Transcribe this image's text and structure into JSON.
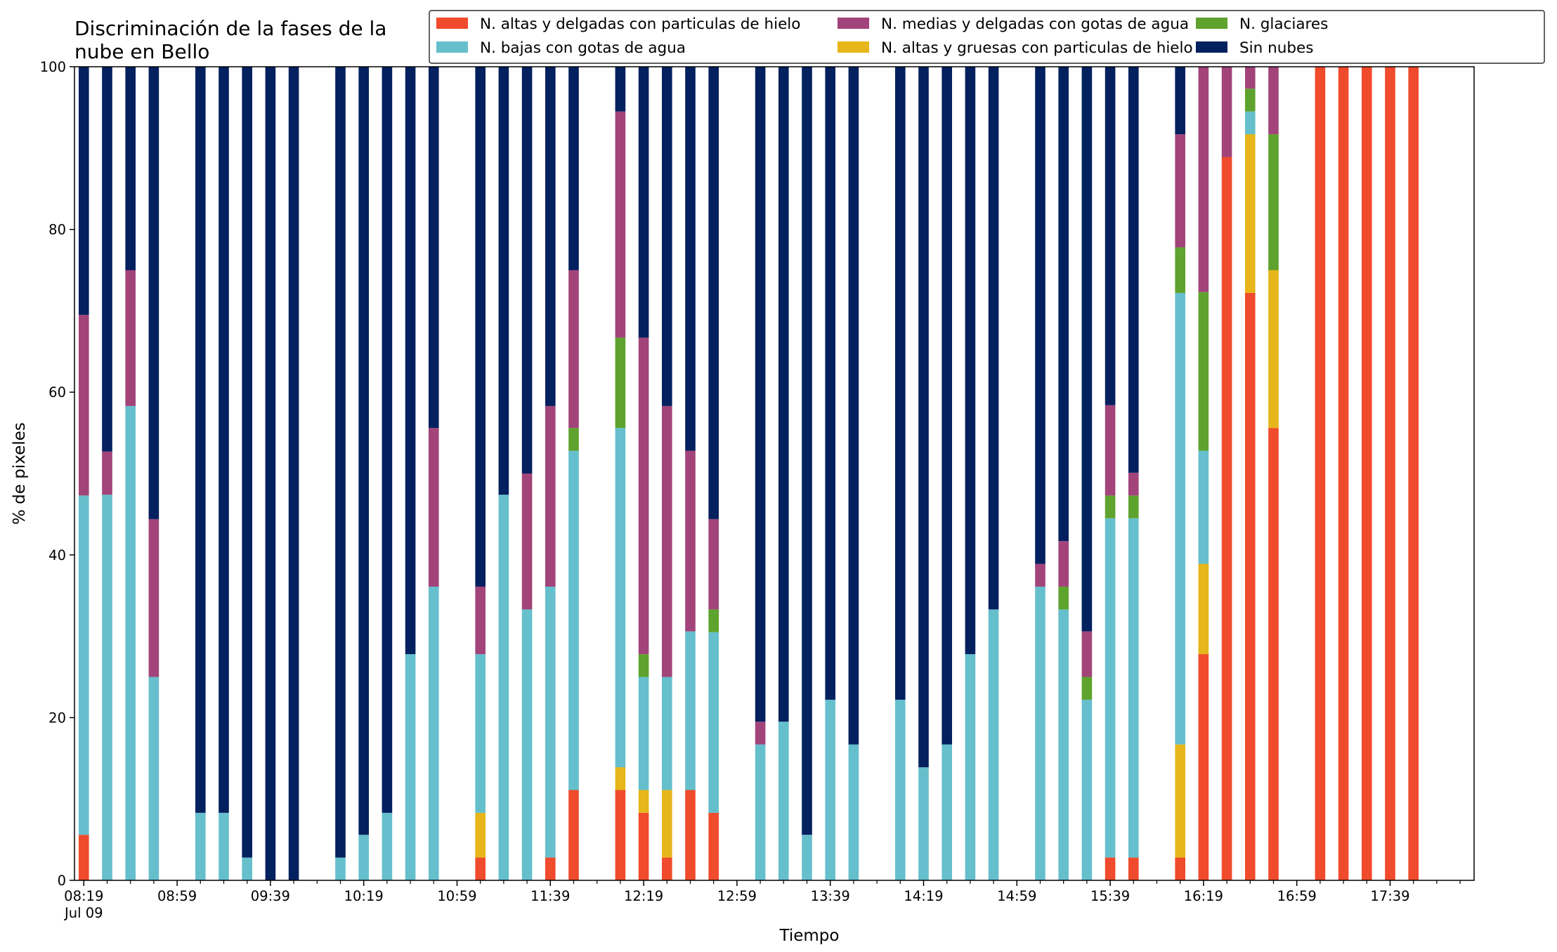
{
  "chart_data": {
    "type": "bar",
    "stacked": true,
    "title_lines": [
      "Discriminación de la fases de la",
      "nube en Bello"
    ],
    "xlabel": "Tiempo",
    "ylabel": "% de pixeles",
    "ylim": [
      0,
      100
    ],
    "yticks": [
      0,
      20,
      40,
      60,
      80,
      100
    ],
    "ytick_labels": [
      "0",
      "20",
      "40",
      "60",
      "80",
      "100"
    ],
    "grid": false,
    "legend_position": "top-right",
    "x_ticks": [
      {
        "time": "08:19",
        "label": "08:19",
        "sublabel": "Jul 09"
      },
      {
        "time": "08:59",
        "label": "08:59"
      },
      {
        "time": "09:39",
        "label": "09:39"
      },
      {
        "time": "10:19",
        "label": "10:19"
      },
      {
        "time": "10:59",
        "label": "10:59"
      },
      {
        "time": "11:39",
        "label": "11:39"
      },
      {
        "time": "12:19",
        "label": "12:19"
      },
      {
        "time": "12:59",
        "label": "12:59"
      },
      {
        "time": "13:39",
        "label": "13:39"
      },
      {
        "time": "14:19",
        "label": "14:19"
      },
      {
        "time": "14:59",
        "label": "14:59"
      },
      {
        "time": "15:39",
        "label": "15:39"
      },
      {
        "time": "16:19",
        "label": "16:19"
      },
      {
        "time": "16:59",
        "label": "16:59"
      },
      {
        "time": "17:39",
        "label": "17:39"
      }
    ],
    "x_range": [
      "08:15",
      "18:15"
    ],
    "bar_width_minutes": 4.4,
    "series": [
      {
        "name": "N. altas y delgadas con particulas de hielo",
        "color": "#ef4b2c"
      },
      {
        "name": "N. altas y gruesas con particulas de hielo",
        "color": "#e6b61a"
      },
      {
        "name": "N. bajas con gotas de agua",
        "color": "#66bfcc"
      },
      {
        "name": "N. glaciares",
        "color": "#5ea32d"
      },
      {
        "name": "N. medias y delgadas con gotas de agua",
        "color": "#a2447a"
      },
      {
        "name": "Sin nubes",
        "color": "#03205f"
      }
    ],
    "legend_order": [
      0,
      2,
      4,
      1,
      3,
      5
    ],
    "bars": [
      {
        "x": "08:19",
        "values": [
          5.6,
          0,
          41.7,
          0,
          22.2,
          30.5
        ]
      },
      {
        "x": "08:29",
        "values": [
          0,
          0,
          47.4,
          0,
          5.3,
          47.3
        ]
      },
      {
        "x": "08:39",
        "values": [
          0,
          0,
          58.3,
          0,
          16.7,
          25.0
        ]
      },
      {
        "x": "08:49",
        "values": [
          0,
          0,
          25.0,
          0,
          19.4,
          55.6
        ]
      },
      {
        "x": "09:09",
        "values": [
          0,
          0,
          8.3,
          0,
          0,
          91.7
        ]
      },
      {
        "x": "09:19",
        "values": [
          0,
          0,
          8.3,
          0,
          0,
          91.7
        ]
      },
      {
        "x": "09:29",
        "values": [
          0,
          0,
          2.8,
          0,
          0,
          97.2
        ]
      },
      {
        "x": "09:39",
        "values": [
          0,
          0,
          0,
          0,
          0,
          100
        ]
      },
      {
        "x": "09:49",
        "values": [
          0,
          0,
          0,
          0,
          0,
          100
        ]
      },
      {
        "x": "10:09",
        "values": [
          0,
          0,
          2.8,
          0,
          0,
          97.2
        ]
      },
      {
        "x": "10:19",
        "values": [
          0,
          0,
          5.6,
          0,
          0,
          94.4
        ]
      },
      {
        "x": "10:29",
        "values": [
          0,
          0,
          8.3,
          0,
          0,
          91.7
        ]
      },
      {
        "x": "10:39",
        "values": [
          0,
          0,
          27.8,
          0,
          0,
          72.2
        ]
      },
      {
        "x": "10:49",
        "values": [
          0,
          0,
          36.1,
          0,
          19.5,
          44.4
        ]
      },
      {
        "x": "11:09",
        "values": [
          2.8,
          5.5,
          19.5,
          0,
          8.3,
          63.9
        ]
      },
      {
        "x": "11:19",
        "values": [
          0,
          0,
          47.4,
          0,
          0,
          52.6
        ]
      },
      {
        "x": "11:29",
        "values": [
          0,
          0,
          33.3,
          0,
          16.7,
          50.0
        ]
      },
      {
        "x": "11:39",
        "values": [
          2.8,
          0,
          33.3,
          0,
          22.2,
          41.7
        ]
      },
      {
        "x": "11:49",
        "values": [
          11.1,
          0,
          41.7,
          2.8,
          19.4,
          25.0
        ]
      },
      {
        "x": "12:09",
        "values": [
          11.1,
          2.8,
          41.7,
          11.1,
          27.8,
          5.5
        ]
      },
      {
        "x": "12:19",
        "values": [
          8.3,
          2.8,
          13.9,
          2.8,
          38.9,
          33.3
        ]
      },
      {
        "x": "12:29",
        "values": [
          2.8,
          8.3,
          13.9,
          0,
          33.3,
          41.7
        ]
      },
      {
        "x": "12:39",
        "values": [
          11.1,
          0,
          19.5,
          0,
          22.2,
          47.2
        ]
      },
      {
        "x": "12:49",
        "values": [
          8.3,
          0,
          22.2,
          2.8,
          11.1,
          55.6
        ]
      },
      {
        "x": "13:09",
        "values": [
          0,
          0,
          16.7,
          0,
          2.8,
          80.5
        ]
      },
      {
        "x": "13:19",
        "values": [
          0,
          0,
          19.5,
          0,
          0,
          80.5
        ]
      },
      {
        "x": "13:29",
        "values": [
          0,
          0,
          5.6,
          0,
          0,
          94.4
        ]
      },
      {
        "x": "13:39",
        "values": [
          0,
          0,
          22.2,
          0,
          0,
          77.8
        ]
      },
      {
        "x": "13:49",
        "values": [
          0,
          0,
          16.7,
          0,
          0,
          83.3
        ]
      },
      {
        "x": "14:09",
        "values": [
          0,
          0,
          22.2,
          0,
          0,
          77.8
        ]
      },
      {
        "x": "14:19",
        "values": [
          0,
          0,
          13.9,
          0,
          0,
          86.1
        ]
      },
      {
        "x": "14:29",
        "values": [
          0,
          0,
          16.7,
          0,
          0,
          83.3
        ]
      },
      {
        "x": "14:39",
        "values": [
          0,
          0,
          27.8,
          0,
          0,
          72.2
        ]
      },
      {
        "x": "14:49",
        "values": [
          0,
          0,
          33.3,
          0,
          0,
          66.7
        ]
      },
      {
        "x": "15:09",
        "values": [
          0,
          0,
          36.1,
          0,
          2.8,
          61.1
        ]
      },
      {
        "x": "15:19",
        "values": [
          0,
          0,
          33.3,
          2.8,
          5.6,
          58.3
        ]
      },
      {
        "x": "15:29",
        "values": [
          0,
          0,
          22.2,
          2.8,
          5.6,
          69.4
        ]
      },
      {
        "x": "15:39",
        "values": [
          2.8,
          0,
          41.7,
          2.8,
          11.1,
          41.6
        ]
      },
      {
        "x": "15:49",
        "values": [
          2.8,
          0,
          41.7,
          2.8,
          2.8,
          49.9
        ]
      },
      {
        "x": "16:09",
        "values": [
          2.8,
          13.9,
          55.5,
          5.6,
          13.9,
          8.3
        ]
      },
      {
        "x": "16:19",
        "values": [
          27.8,
          11.1,
          13.9,
          19.5,
          27.7,
          0
        ]
      },
      {
        "x": "16:29",
        "values": [
          88.9,
          0,
          0,
          0,
          11.1,
          0
        ]
      },
      {
        "x": "16:39",
        "values": [
          72.2,
          19.5,
          2.8,
          2.8,
          2.7,
          0
        ]
      },
      {
        "x": "16:49",
        "values": [
          55.6,
          19.4,
          0,
          16.7,
          8.3,
          0
        ]
      },
      {
        "x": "17:09",
        "values": [
          100,
          0,
          0,
          0,
          0,
          0
        ]
      },
      {
        "x": "17:19",
        "values": [
          100,
          0,
          0,
          0,
          0,
          0
        ]
      },
      {
        "x": "17:29",
        "values": [
          100,
          0,
          0,
          0,
          0,
          0
        ]
      },
      {
        "x": "17:39",
        "values": [
          100,
          0,
          0,
          0,
          0,
          0
        ]
      },
      {
        "x": "17:49",
        "values": [
          100,
          0,
          0,
          0,
          0,
          0
        ]
      }
    ]
  }
}
